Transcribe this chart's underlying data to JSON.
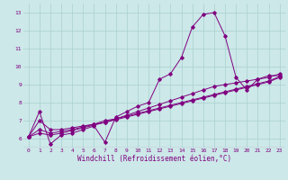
{
  "xlabel": "Windchill (Refroidissement éolien,°C)",
  "ylabel": "",
  "bg_color": "#cce8e8",
  "line_color": "#800080",
  "xlim": [
    -0.5,
    23.5
  ],
  "ylim": [
    5.5,
    13.5
  ],
  "xticks": [
    0,
    1,
    2,
    3,
    4,
    5,
    6,
    7,
    8,
    9,
    10,
    11,
    12,
    13,
    14,
    15,
    16,
    17,
    18,
    19,
    20,
    21,
    22,
    23
  ],
  "yticks": [
    6,
    7,
    8,
    9,
    10,
    11,
    12,
    13
  ],
  "grid_color": "#aad0d0",
  "curves": [
    [
      6.1,
      7.5,
      5.7,
      6.2,
      6.3,
      6.5,
      6.7,
      5.8,
      7.2,
      7.5,
      7.8,
      8.0,
      9.3,
      9.6,
      10.5,
      12.2,
      12.9,
      13.0,
      11.7,
      9.4,
      8.7,
      9.3,
      9.5,
      9.5
    ],
    [
      6.1,
      7.0,
      6.5,
      6.5,
      6.6,
      6.7,
      6.8,
      7.0,
      7.1,
      7.3,
      7.5,
      7.7,
      7.9,
      8.1,
      8.3,
      8.5,
      8.7,
      8.9,
      9.0,
      9.1,
      9.2,
      9.3,
      9.4,
      9.6
    ],
    [
      6.1,
      6.5,
      6.3,
      6.4,
      6.5,
      6.65,
      6.8,
      6.9,
      7.1,
      7.25,
      7.4,
      7.55,
      7.7,
      7.85,
      8.0,
      8.15,
      8.3,
      8.45,
      8.6,
      8.75,
      8.9,
      9.05,
      9.2,
      9.45
    ],
    [
      6.1,
      6.3,
      6.2,
      6.3,
      6.45,
      6.6,
      6.75,
      6.9,
      7.05,
      7.2,
      7.35,
      7.5,
      7.65,
      7.8,
      7.95,
      8.1,
      8.25,
      8.4,
      8.55,
      8.7,
      8.85,
      9.0,
      9.15,
      9.4
    ]
  ],
  "xlabel_fontsize": 5.5,
  "tick_fontsize": 4.5
}
